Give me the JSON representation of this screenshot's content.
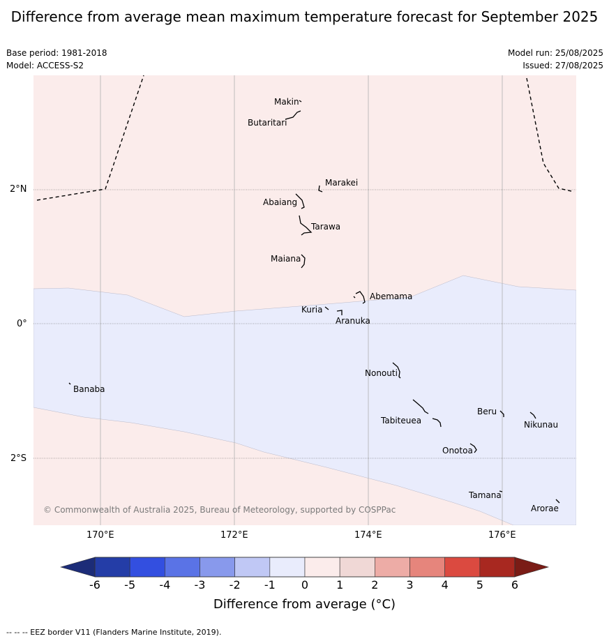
{
  "title": "Difference from average mean maximum temperature forecast for September 2025",
  "meta_left": {
    "base_period": "Base period: 1981-2018",
    "model": "Model: ACCESS-S2"
  },
  "meta_right": {
    "model_run": "Model run: 25/08/2025",
    "issued": "Issued: 27/08/2025"
  },
  "map": {
    "background_colors": {
      "warm": "#fbeceb",
      "cool": "#e9ecfc"
    },
    "lon_ticks": [
      "170°E",
      "172°E",
      "174°E",
      "176°E"
    ],
    "lat_ticks": [
      "2°N",
      "0°",
      "2°S"
    ],
    "islands": [
      "Makin",
      "Butaritari",
      "Marakei",
      "Abaiang",
      "Tarawa",
      "Maiana",
      "Abemama",
      "Kuria",
      "Aranuka",
      "Nonouti",
      "Banaba",
      "Beru",
      "Nikunau",
      "Tabiteuea",
      "Onotoa",
      "Tamana",
      "Arorae"
    ],
    "copyright": "© Commonwealth of Australia 2025, Bureau of Meteorology, supported by COSPPac"
  },
  "colorbar": {
    "ticks": [
      "-6",
      "-5",
      "-4",
      "-3",
      "-2",
      "-1",
      "0",
      "1",
      "2",
      "3",
      "4",
      "5",
      "6"
    ],
    "colors": [
      "#243da7",
      "#334fe0",
      "#5a73e6",
      "#8899ec",
      "#c0c8f5",
      "#e9ecfc",
      "#fbeceb",
      "#f0d8d6",
      "#edaca6",
      "#e6857c",
      "#db4a40",
      "#a82820"
    ],
    "low_extend_color": "#1c2c78",
    "high_extend_color": "#7a1c16",
    "title": "Difference from average (°C)"
  },
  "footnote": "--  --  -- EEZ border V11 (Flanders Marine Institute, 2019)."
}
